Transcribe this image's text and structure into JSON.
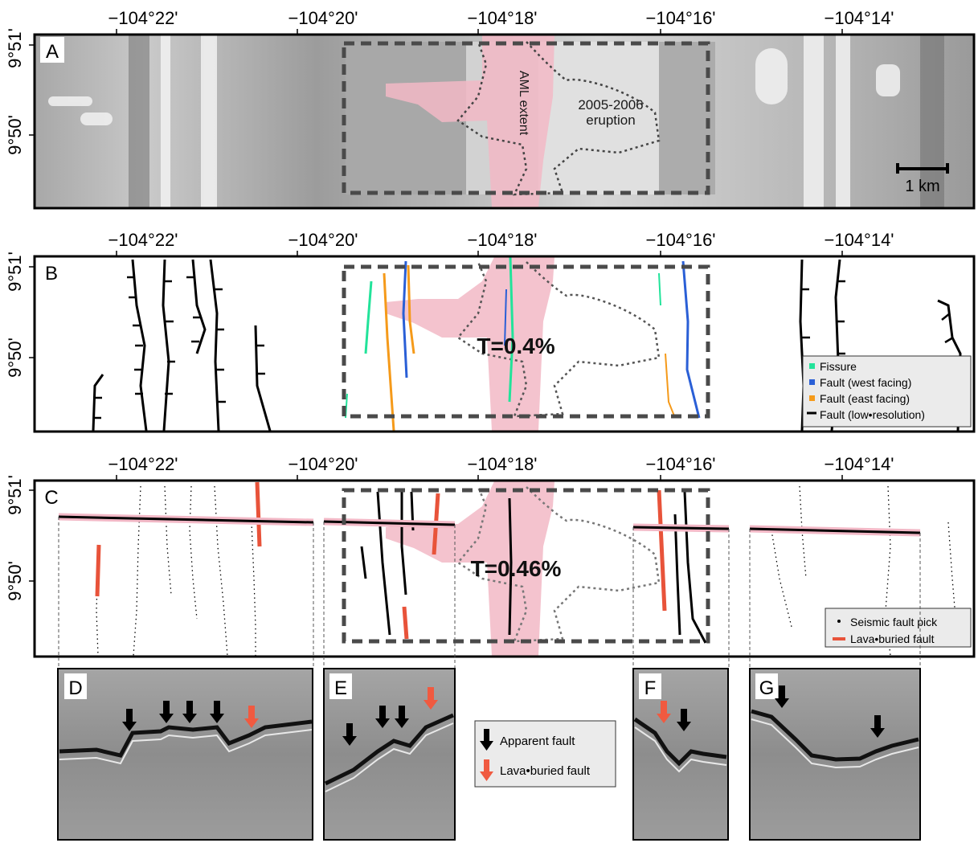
{
  "lon_ticks": [
    "−104°22'",
    "−104°20'",
    "−104°18'",
    "−104°16'",
    "−104°14'"
  ],
  "lat_ticks": [
    "9°51'",
    "9°50'"
  ],
  "panels": {
    "A": {
      "letter": "A",
      "aml_label": "AML extent",
      "eruption_label": "2005-2006\neruption",
      "scale_label": "1 km"
    },
    "B": {
      "letter": "B",
      "t_label": "T=0.4%",
      "legend": [
        {
          "label": "Fissure",
          "color": "#22e39a"
        },
        {
          "label": "Fault (west facing)",
          "color": "#2a5fd6"
        },
        {
          "label": "Fault (east facing)",
          "color": "#f59a1a"
        },
        {
          "label": "Fault (low•resolution)",
          "color": "#000000"
        }
      ]
    },
    "C": {
      "letter": "C",
      "t_label": "T=0.46%",
      "legend": [
        {
          "label": "Seismic fault pick",
          "color": "#000000"
        },
        {
          "label": "Lava•buried fault",
          "color": "#e8533a"
        }
      ]
    }
  },
  "profiles": [
    "D",
    "E",
    "F",
    "G"
  ],
  "arrow_legend": [
    {
      "label": "Apparent fault",
      "color": "#000000"
    },
    {
      "label": "Lava•buried fault",
      "color": "#f05a40"
    }
  ],
  "colors": {
    "aml": "#f2b8c6",
    "frame": "#000000",
    "dashed_box": "#4a4a4a",
    "lava_buried": "#e8533a",
    "profile_bg": "#8a8a8a"
  }
}
